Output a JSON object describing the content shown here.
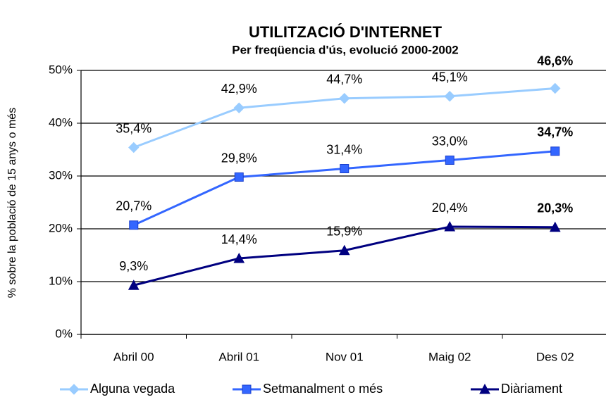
{
  "chart_data": {
    "type": "line",
    "title": "UTILITZACIÓ D'INTERNET",
    "subtitle": "Per freqüencia d'ús, evolució 2000-2002",
    "y_label": "% sobre la població de 15 anys o més",
    "categories": [
      "Abril 00",
      "Abril 01",
      "Nov 01",
      "Maig 02",
      "Des 02"
    ],
    "series": [
      {
        "name": "Alguna vegada",
        "color": "#99ccff",
        "marker": "diamond",
        "values": [
          35.4,
          42.9,
          44.7,
          45.1,
          46.6
        ],
        "value_labels": [
          "35,4%",
          "42,9%",
          "44,7%",
          "45,1%",
          "46,6%"
        ]
      },
      {
        "name": "Setmanalment o més",
        "color": "#3366ff",
        "marker": "square",
        "values": [
          20.7,
          29.8,
          31.4,
          33.0,
          34.7
        ],
        "value_labels": [
          "20,7%",
          "29,8%",
          "31,4%",
          "33,0%",
          "34,7%"
        ]
      },
      {
        "name": "Diàriament",
        "color": "#000080",
        "marker": "triangle",
        "values": [
          9.3,
          14.4,
          15.9,
          20.4,
          20.3
        ],
        "value_labels": [
          "9,3%",
          "14,4%",
          "15,9%",
          "20,4%",
          "20,3%"
        ]
      }
    ],
    "ylim": [
      0,
      50
    ],
    "yticks": [
      {
        "value": 0,
        "label": "0%"
      },
      {
        "value": 10,
        "label": "10%"
      },
      {
        "value": 20,
        "label": "20%"
      },
      {
        "value": 30,
        "label": "30%"
      },
      {
        "value": 40,
        "label": "40%"
      },
      {
        "value": 50,
        "label": "50%"
      }
    ],
    "grid": true
  }
}
